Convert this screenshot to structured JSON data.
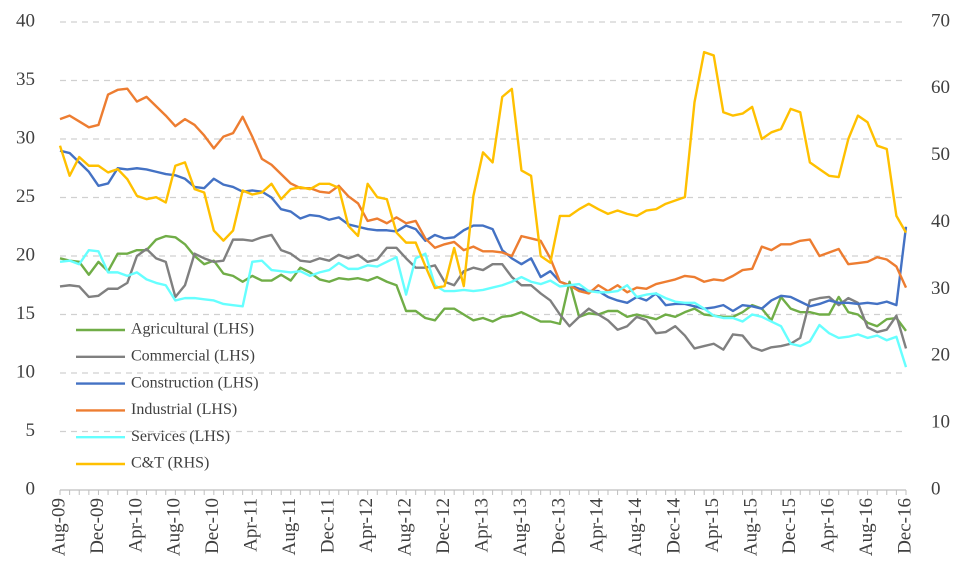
{
  "chart_data": {
    "type": "line",
    "categories": [
      "Aug-09",
      null,
      null,
      null,
      "Dec-09",
      null,
      null,
      null,
      "Apr-10",
      null,
      null,
      null,
      "Aug-10",
      null,
      null,
      null,
      "Dec-10",
      null,
      null,
      null,
      "Apr-11",
      null,
      null,
      null,
      "Aug-11",
      null,
      null,
      null,
      "Dec-11",
      null,
      null,
      null,
      "Apr-12",
      null,
      null,
      null,
      "Aug-12",
      null,
      null,
      null,
      "Dec-12",
      null,
      null,
      null,
      "Apr-13",
      null,
      null,
      null,
      "Aug-13",
      null,
      null,
      null,
      "Dec-13",
      null,
      null,
      null,
      "Apr-14",
      null,
      null,
      null,
      "Aug-14",
      null,
      null,
      null,
      "Dec-14",
      null,
      null,
      null,
      "Apr-15",
      null,
      null,
      null,
      "Aug-15",
      null,
      null,
      null,
      "Dec-15",
      null,
      null,
      null,
      "Apr-16",
      null,
      null,
      null,
      "Aug-16",
      null,
      null,
      null,
      "Dec-16"
    ],
    "ylim": [
      0,
      40
    ],
    "yticks": [
      0,
      5,
      10,
      15,
      20,
      25,
      30,
      35,
      40
    ],
    "y2lim": [
      0,
      70
    ],
    "y2ticks": [
      0,
      10,
      20,
      30,
      40,
      50,
      60,
      70
    ],
    "grid": true,
    "legend": "left",
    "series": [
      {
        "name": "Agricultural (LHS)",
        "color": "#70ad47",
        "values": [
          19.8,
          19.6,
          19.5,
          18.4,
          19.5,
          18.7,
          20.2,
          20.2,
          20.5,
          20.5,
          21.4,
          21.7,
          21.6,
          21.0,
          20.0,
          19.3,
          19.6,
          18.5,
          18.3,
          17.8,
          18.3,
          17.9,
          17.9,
          18.4,
          17.9,
          19.0,
          18.6,
          18.0,
          17.8,
          18.1,
          18.0,
          18.1,
          17.9,
          18.2,
          17.8,
          17.5,
          15.3,
          15.3,
          14.7,
          14.5,
          15.5,
          15.5,
          15.0,
          14.5,
          14.7,
          14.4,
          14.8,
          14.9,
          15.2,
          14.8,
          14.4,
          14.4,
          14.2,
          17.8,
          14.8,
          15.1,
          15.0,
          15.3,
          15.3,
          14.8,
          15.0,
          14.8,
          14.6,
          15.0,
          14.8,
          15.2,
          15.5,
          15.0,
          14.9,
          14.8,
          14.8,
          15.2,
          15.8,
          15.5,
          14.5,
          16.5,
          15.5,
          15.2,
          15.2,
          15.0,
          15.0,
          16.5,
          15.2,
          15.0,
          14.3,
          14.0,
          14.6,
          14.7,
          13.6
        ]
      },
      {
        "name": "Commercial (LHS)",
        "color": "#808080",
        "values": [
          17.4,
          17.5,
          17.4,
          16.5,
          16.6,
          17.2,
          17.2,
          17.7,
          20.0,
          20.6,
          19.8,
          19.5,
          16.5,
          17.5,
          20.2,
          19.8,
          19.5,
          19.6,
          21.4,
          21.4,
          21.3,
          21.6,
          21.8,
          20.5,
          20.2,
          19.6,
          19.5,
          19.8,
          19.6,
          20.1,
          19.8,
          20.1,
          19.5,
          19.7,
          20.7,
          20.7,
          19.8,
          19.0,
          19.0,
          19.2,
          17.8,
          17.5,
          18.7,
          19.0,
          18.8,
          19.3,
          19.3,
          18.2,
          17.5,
          17.5,
          16.8,
          16.2,
          15.0,
          14.0,
          14.8,
          15.5,
          15.0,
          14.5,
          13.7,
          14.0,
          14.8,
          14.5,
          13.4,
          13.5,
          14.0,
          13.2,
          12.1,
          12.3,
          12.5,
          12.0,
          13.3,
          13.2,
          12.2,
          11.9,
          12.2,
          12.3,
          12.5,
          13.0,
          16.2,
          16.4,
          16.5,
          15.8,
          16.4,
          16.0,
          13.9,
          13.5,
          13.7,
          14.9,
          12.1
        ]
      },
      {
        "name": "Construction (LHS)",
        "color": "#4472c4",
        "values": [
          29.0,
          28.8,
          28.0,
          27.2,
          26.0,
          26.2,
          27.5,
          27.4,
          27.5,
          27.4,
          27.2,
          27.0,
          26.9,
          26.6,
          25.9,
          25.8,
          26.6,
          26.1,
          25.9,
          25.5,
          25.6,
          25.5,
          25.0,
          24.0,
          23.8,
          23.2,
          23.5,
          23.4,
          23.1,
          23.3,
          22.7,
          22.5,
          22.3,
          22.2,
          22.2,
          22.1,
          22.6,
          22.3,
          21.3,
          21.8,
          21.5,
          21.6,
          22.2,
          22.6,
          22.6,
          22.3,
          20.5,
          19.8,
          19.3,
          19.8,
          18.2,
          18.7,
          17.8,
          17.5,
          17.2,
          17.0,
          17.0,
          16.5,
          16.2,
          16.0,
          16.5,
          16.2,
          16.8,
          15.8,
          15.9,
          15.9,
          15.7,
          15.5,
          15.6,
          15.8,
          15.3,
          15.8,
          15.7,
          15.5,
          16.2,
          16.6,
          16.5,
          16.1,
          15.7,
          15.9,
          16.2,
          16.0,
          16.0,
          15.9,
          16.0,
          15.9,
          16.1,
          15.8,
          22.5
        ]
      },
      {
        "name": "Industrial (LHS)",
        "color": "#ed7d31",
        "values": [
          31.7,
          32.0,
          31.5,
          31.0,
          31.2,
          33.8,
          34.2,
          34.3,
          33.2,
          33.6,
          32.8,
          32.0,
          31.1,
          31.7,
          31.2,
          30.3,
          29.2,
          30.2,
          30.5,
          31.9,
          30.2,
          28.3,
          27.8,
          27.0,
          26.2,
          25.8,
          25.8,
          25.5,
          25.4,
          26.0,
          25.1,
          24.5,
          23.0,
          23.2,
          22.8,
          23.3,
          22.8,
          23.0,
          21.5,
          20.7,
          21.0,
          21.2,
          20.5,
          20.8,
          20.4,
          20.4,
          20.3,
          20.0,
          21.7,
          21.5,
          21.3,
          19.8,
          17.8,
          17.5,
          17.0,
          16.8,
          17.5,
          17.0,
          17.5,
          16.9,
          17.3,
          17.2,
          17.6,
          17.8,
          18.0,
          18.3,
          18.2,
          17.8,
          18.0,
          17.9,
          18.3,
          18.8,
          18.9,
          20.8,
          20.5,
          21.0,
          21.0,
          21.3,
          21.4,
          20.0,
          20.3,
          20.6,
          19.3,
          19.4,
          19.5,
          19.9,
          19.7,
          19.1,
          17.3
        ]
      },
      {
        "name": "Services (LHS)",
        "color": "#66ffff",
        "values": [
          19.5,
          19.6,
          19.3,
          20.5,
          20.4,
          18.6,
          18.6,
          18.3,
          18.6,
          18.0,
          17.7,
          17.5,
          16.2,
          16.4,
          16.4,
          16.3,
          16.2,
          15.9,
          15.8,
          15.7,
          19.5,
          19.6,
          18.8,
          18.7,
          18.6,
          18.7,
          18.3,
          18.6,
          18.8,
          19.4,
          18.9,
          18.9,
          19.2,
          19.1,
          19.5,
          19.9,
          16.7,
          19.8,
          20.2,
          17.5,
          17.0,
          17.0,
          17.1,
          17.0,
          17.1,
          17.3,
          17.5,
          17.8,
          18.2,
          17.8,
          17.6,
          17.9,
          17.4,
          17.5,
          17.6,
          17.0,
          16.9,
          16.9,
          17.0,
          17.5,
          16.5,
          16.7,
          16.8,
          16.4,
          16.1,
          16.0,
          16.0,
          15.5,
          14.9,
          14.7,
          14.7,
          14.4,
          15.0,
          14.8,
          14.4,
          14.0,
          12.5,
          12.3,
          12.7,
          14.1,
          13.4,
          13.0,
          13.1,
          13.3,
          13.0,
          13.2,
          12.8,
          13.1,
          10.5
        ]
      },
      {
        "name": "C&T (RHS)",
        "color": "#ffc000",
        "axis": "y2",
        "values": [
          51.5,
          47.0,
          49.8,
          48.5,
          48.5,
          47.5,
          48.0,
          46.5,
          44.0,
          43.5,
          43.8,
          43.0,
          48.5,
          49.0,
          45.0,
          44.5,
          38.8,
          37.3,
          38.8,
          44.8,
          44.2,
          44.5,
          45.8,
          43.5,
          45.0,
          45.3,
          45.0,
          45.8,
          45.8,
          45.2,
          39.5,
          38.0,
          45.8,
          43.8,
          43.5,
          38.5,
          37.0,
          37.0,
          33.5,
          30.2,
          30.5,
          36.2,
          30.5,
          44.0,
          50.5,
          49.0,
          58.8,
          60.0,
          47.8,
          47.0,
          35.0,
          34.0,
          41.0,
          41.0,
          42.0,
          42.8,
          42.0,
          41.3,
          41.8,
          41.3,
          41.0,
          41.8,
          42.0,
          42.8,
          43.3,
          43.8,
          58.0,
          65.5,
          65.0,
          56.5,
          56.0,
          56.3,
          57.3,
          52.5,
          53.5,
          54.0,
          57.0,
          56.5,
          49.0,
          48.0,
          47.0,
          46.8,
          52.5,
          56.0,
          55.0,
          51.5,
          51.0,
          41.0,
          38.5
        ]
      }
    ]
  }
}
